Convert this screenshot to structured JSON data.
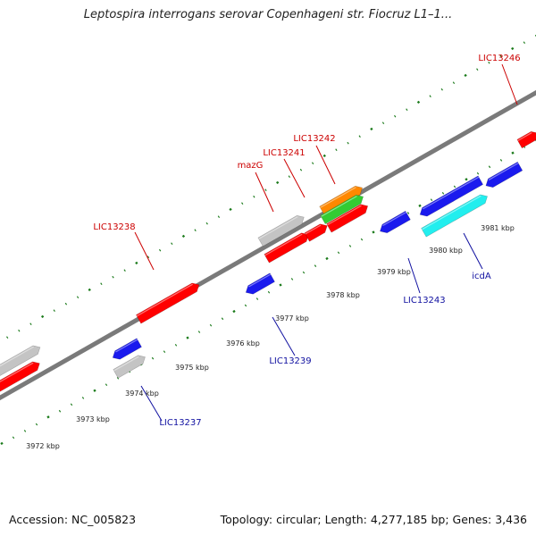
{
  "title": "Leptospira interrogans serovar Copenhageni str. Fiocruz L1–1...",
  "footer": {
    "accession": "Accession: NC_005823",
    "summary": "Topology: circular; Length: 4,277,185 bp; Genes: 3,436"
  },
  "colors": {
    "backbone": "#7a7a7a",
    "tick": "#1a7a1a",
    "label_forward": "#cc0000",
    "label_reverse": "#1010a0",
    "red": "#ff0000",
    "blue": "#1a1aee",
    "gray": "#c4c4c4",
    "cyan": "#22eeee",
    "orange": "#ff8800",
    "green": "#33cc33"
  },
  "axis": {
    "unit": "kbp",
    "ticks": [
      "3972 kbp",
      "3973 kbp",
      "3974 kbp",
      "3975 kbp",
      "3976 kbp",
      "3977 kbp",
      "3978 kbp",
      "3979 kbp",
      "3980 kbp",
      "3981 kbp"
    ]
  },
  "labels": {
    "forward": [
      "LIC13238",
      "mazG",
      "LIC13241",
      "LIC13242",
      "LIC13246"
    ],
    "reverse": [
      "LIC13237",
      "LIC13239",
      "LIC13243",
      "icdA"
    ]
  }
}
